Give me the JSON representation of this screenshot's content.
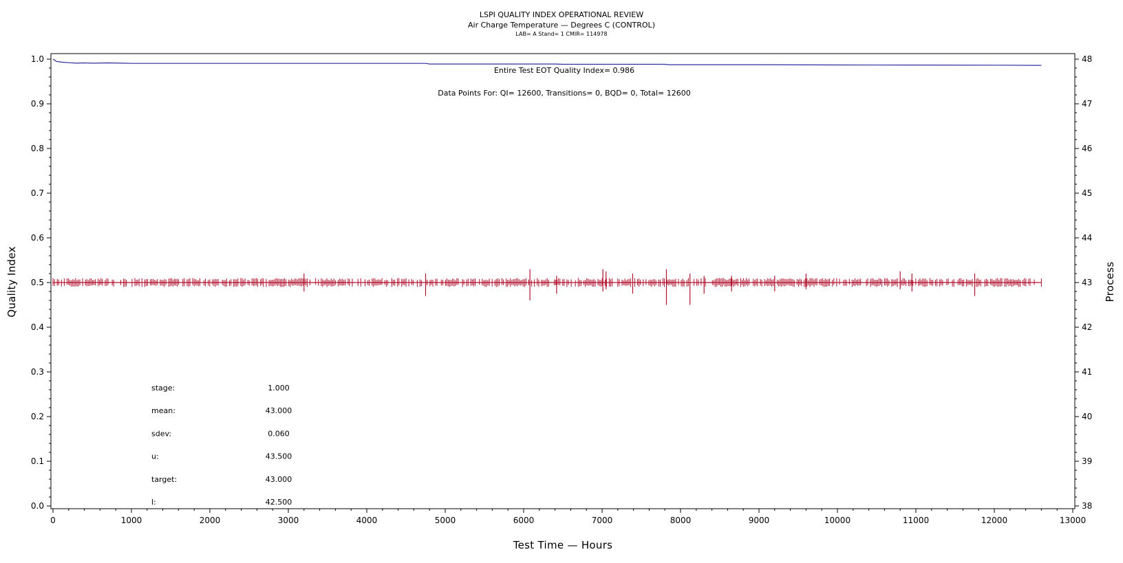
{
  "chart_data": {
    "type": "line",
    "title": "LSPI QUALITY INDEX OPERATIONAL REVIEW",
    "subtitle": "Air Charge Temperature — Degrees C (CONTROL)",
    "subtitle2": "LAB= A Stand= 1 CMIR= 114978",
    "xlabel": "Test Time — Hours",
    "ylabel": "Quality Index",
    "y2label": "Process",
    "xlim": [
      0,
      13000
    ],
    "ylim": [
      0,
      1
    ],
    "y2lim": [
      38,
      48
    ],
    "xticks": [
      "0",
      "1000",
      "2000",
      "3000",
      "4000",
      "5000",
      "6000",
      "7000",
      "8000",
      "9000",
      "10000",
      "11000",
      "12000",
      "13000"
    ],
    "yticks": [
      "0.0",
      "0.1",
      "0.2",
      "0.3",
      "0.4",
      "0.5",
      "0.6",
      "0.7",
      "0.8",
      "0.9",
      "1.0"
    ],
    "y2ticks": [
      "38",
      "39",
      "40",
      "41",
      "42",
      "43",
      "44",
      "45",
      "46",
      "47",
      "48"
    ],
    "annotations": {
      "eot": "Entire Test EOT Quality Index=   0.986",
      "points": "Data Points For: QI= 12600, Transitions=     0, BQD=     0, Total= 12600"
    },
    "stats": [
      {
        "label": "stage:",
        "value": "1.000"
      },
      {
        "label": "mean:",
        "value": "43.000"
      },
      {
        "label": "sdev:",
        "value": "0.060"
      },
      {
        "label": "u:",
        "value": "43.500"
      },
      {
        "label": "target:",
        "value": "43.000"
      },
      {
        "label": "l:",
        "value": "42.500"
      }
    ],
    "series": [
      {
        "color": "#2c2c9e",
        "axis": "left",
        "x": [
          0,
          20,
          40,
          80,
          120,
          200,
          300,
          400,
          500,
          700,
          900,
          1000,
          2000,
          3000,
          4000,
          4750,
          4800,
          6000,
          6400,
          6500,
          7000,
          7800,
          7850,
          9000,
          10000,
          11000,
          12000,
          12600
        ],
        "y": [
          1.0,
          0.998,
          0.995,
          0.994,
          0.993,
          0.992,
          0.991,
          0.9915,
          0.991,
          0.9915,
          0.991,
          0.9905,
          0.9905,
          0.9905,
          0.9905,
          0.9905,
          0.989,
          0.989,
          0.989,
          0.9885,
          0.9885,
          0.9885,
          0.9875,
          0.9875,
          0.987,
          0.9868,
          0.9865,
          0.986
        ]
      },
      {
        "color": "#b0102c",
        "axis": "right",
        "x_start": 0,
        "x_end": 12600,
        "mean": 43.0,
        "base_band": [
          42.9,
          43.1
        ],
        "spikes": [
          {
            "x": 3200,
            "lo": 42.8,
            "hi": 43.2
          },
          {
            "x": 4750,
            "lo": 42.7,
            "hi": 43.2
          },
          {
            "x": 6080,
            "lo": 42.6,
            "hi": 43.3
          },
          {
            "x": 6420,
            "lo": 42.75,
            "hi": 43.15
          },
          {
            "x": 7010,
            "lo": 42.8,
            "hi": 43.3
          },
          {
            "x": 7050,
            "lo": 42.85,
            "hi": 43.25
          },
          {
            "x": 7390,
            "lo": 42.75,
            "hi": 43.2
          },
          {
            "x": 7820,
            "lo": 42.5,
            "hi": 43.3
          },
          {
            "x": 8120,
            "lo": 42.5,
            "hi": 43.2
          },
          {
            "x": 8300,
            "lo": 42.75,
            "hi": 43.15
          },
          {
            "x": 8650,
            "lo": 42.8,
            "hi": 43.15
          },
          {
            "x": 9200,
            "lo": 42.8,
            "hi": 43.15
          },
          {
            "x": 9600,
            "lo": 42.85,
            "hi": 43.2
          },
          {
            "x": 10800,
            "lo": 42.85,
            "hi": 43.25
          },
          {
            "x": 10950,
            "lo": 42.8,
            "hi": 43.2
          },
          {
            "x": 11750,
            "lo": 42.7,
            "hi": 43.2
          }
        ]
      }
    ]
  }
}
